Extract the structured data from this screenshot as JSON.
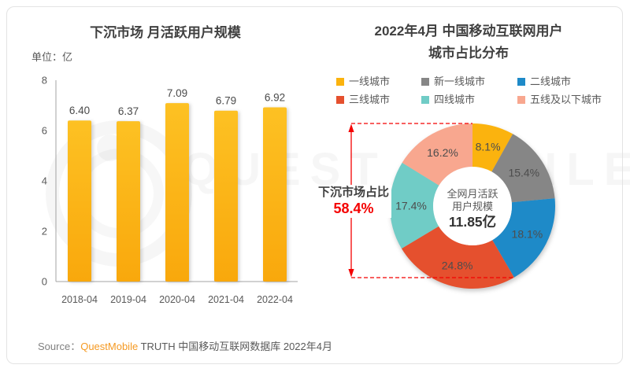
{
  "right_chart": {
    "title_line1": "2022年4月 中国移动互联网用户",
    "title_line2": "城市占比分布"
  },
  "footer": {
    "source_label": "Source：",
    "source_brand": "QuestMobile",
    "source_rest": " TRUTH 中国移动互联网数据库 2022年4月"
  },
  "watermark": {
    "text": "QUEST MOBILE"
  },
  "colors": {
    "bar_yellow": "#FBB30E",
    "accent_red": "#F40000",
    "brand_orange": "#F59A23",
    "title_text": "#404040",
    "body_text": "#595959"
  },
  "chart_data": [
    {
      "type": "bar",
      "title": "下沉市场 月活跃用户规模",
      "ylabel": "单位：亿",
      "categories": [
        "2018-04",
        "2019-04",
        "2020-04",
        "2021-04",
        "2022-04"
      ],
      "values": [
        6.4,
        6.37,
        7.09,
        6.79,
        6.92
      ],
      "ylim": [
        0,
        8
      ],
      "yticks": [
        0,
        2,
        4,
        6,
        8
      ],
      "grid": false,
      "bar_gradient": [
        "#FDC123",
        "#F9A80C"
      ]
    },
    {
      "type": "pie",
      "donut": true,
      "title": "2022年4月 中国移动互联网用户 城市占比分布",
      "labels": [
        "一线城市",
        "新一线城市",
        "二线城市",
        "三线城市",
        "四线城市",
        "五线及以下城市"
      ],
      "values": [
        8.1,
        15.4,
        18.1,
        24.8,
        17.4,
        16.2
      ],
      "colors": [
        "#FBB30E",
        "#868686",
        "#1E8AC8",
        "#E5502E",
        "#70CCC6",
        "#F8A78F"
      ],
      "legend_position": "top",
      "center_text": [
        "全网月活跃",
        "用户规模",
        "11.85亿"
      ],
      "annotation": {
        "label": "下沉市场占比",
        "value": "58.4%",
        "covers": [
          "三线城市",
          "四线城市",
          "五线及以下城市"
        ]
      }
    }
  ]
}
